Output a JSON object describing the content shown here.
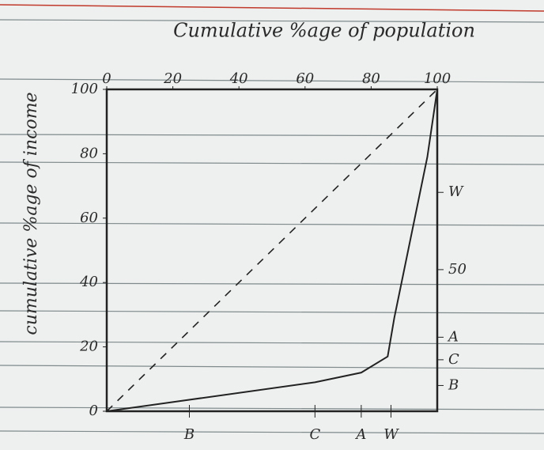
{
  "chart_data": {
    "type": "line",
    "title": "Cumulative %age of population",
    "y_label": "cumulative %age of income",
    "xlim": [
      0,
      100
    ],
    "ylim": [
      0,
      100
    ],
    "xticks": [
      0,
      20,
      40,
      60,
      80,
      100
    ],
    "yticks": [
      0,
      20,
      40,
      60,
      80,
      100
    ],
    "series": [
      {
        "color": "#222222",
        "dash": false,
        "x": [
          0,
          63,
          77,
          85,
          87,
          92,
          97,
          100
        ],
        "values": [
          0,
          9,
          12,
          17,
          29,
          54,
          79,
          100
        ]
      },
      {
        "color": "#222222",
        "dash": true,
        "x": [
          0,
          100
        ],
        "values": [
          0,
          100
        ]
      }
    ],
    "bottom_annotations": [
      {
        "label": "B",
        "x": 25
      },
      {
        "label": "C",
        "x": 63
      },
      {
        "label": "A",
        "x": 77
      },
      {
        "label": "W",
        "x": 86
      }
    ],
    "right_annotations": [
      {
        "label": "W",
        "y": 68
      },
      {
        "label": "50",
        "y": 44
      },
      {
        "label": "A",
        "y": 23
      },
      {
        "label": "C",
        "y": 16
      },
      {
        "label": "B",
        "y": 8
      }
    ]
  }
}
